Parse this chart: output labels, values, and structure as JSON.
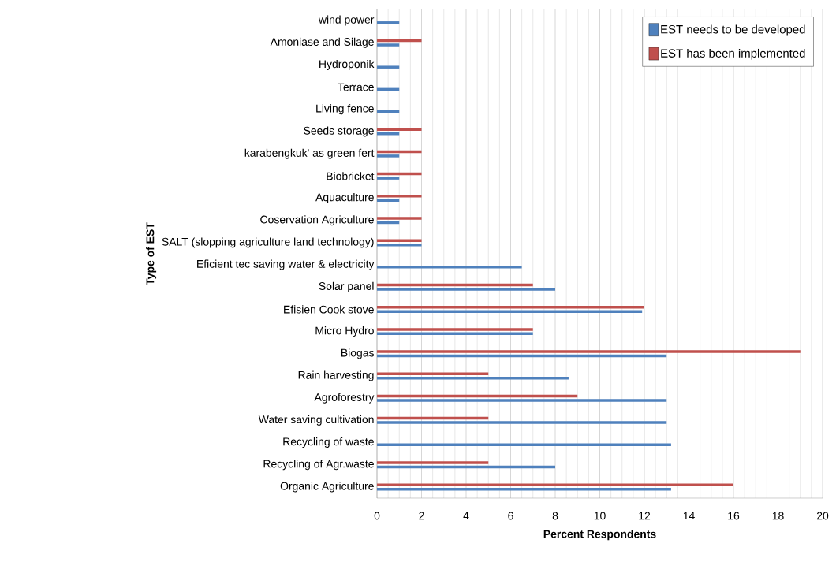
{
  "chart_data": {
    "type": "bar",
    "orientation": "horizontal",
    "xlabel": "Percent Respondents",
    "ylabel": "Type of EST",
    "categories": [
      "wind power",
      "Amoniase and Silage",
      "Hydroponik",
      "Terrace",
      "Living fence",
      "Seeds storage",
      "karabengkuk' as green fert",
      "Biobricket",
      "Aquaculture",
      "Coservation Agriculture",
      "SALT (slopping agriculture land technology)",
      "Eficient tec saving water & electricity",
      "Solar panel",
      "Efisien Cook stove",
      "Micro Hydro",
      "Biogas",
      "Rain harvesting",
      "Agroforestry",
      "Water saving cultivation",
      "Recycling of waste",
      "Recycling of Agr.waste",
      "Organic Agriculture"
    ],
    "series": [
      {
        "name": "EST needs to be developed",
        "color": "#4f81bd",
        "values": [
          1,
          1,
          1,
          1,
          1,
          1,
          1,
          1,
          1,
          1,
          2,
          6.5,
          8,
          11.9,
          7,
          13,
          8.6,
          13,
          13,
          13.2,
          8,
          13.2
        ]
      },
      {
        "name": "EST has been implemented",
        "color": "#c0504d",
        "values": [
          null,
          2,
          null,
          null,
          null,
          2,
          2,
          2,
          2,
          2,
          2,
          null,
          7,
          12,
          7,
          19,
          5,
          9,
          5,
          null,
          5,
          16
        ]
      }
    ],
    "xlim": [
      0,
      20
    ],
    "xticks": [
      0,
      2,
      4,
      6,
      8,
      10,
      12,
      14,
      16,
      18,
      20
    ],
    "grid": "x",
    "legend": "top right"
  }
}
